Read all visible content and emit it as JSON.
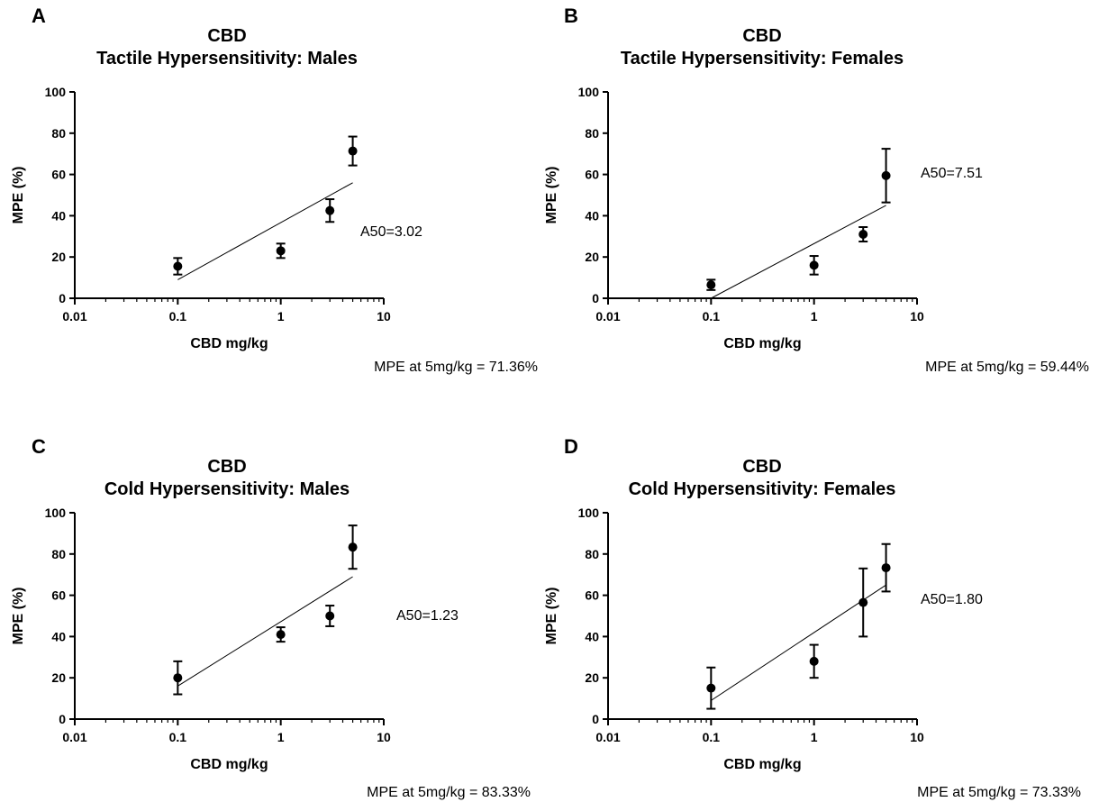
{
  "chart_data": [
    {
      "type": "scatter",
      "panel": "A",
      "title": "CBD",
      "subtitle": "Tactile Hypersensitivity: Males",
      "xlabel": "CBD mg/kg",
      "ylabel": "MPE (%)",
      "xscale": "log",
      "xlim": [
        0.01,
        10
      ],
      "ylim": [
        0,
        100
      ],
      "x_ticks": [
        "0.01",
        "0.1",
        "1",
        "10"
      ],
      "y_ticks": [
        "0",
        "20",
        "40",
        "60",
        "80",
        "100"
      ],
      "points": [
        {
          "x": 0.1,
          "y": 15.5,
          "err": 4.0
        },
        {
          "x": 1,
          "y": 23.0,
          "err": 3.5
        },
        {
          "x": 3,
          "y": 42.5,
          "err": 5.5
        },
        {
          "x": 5,
          "y": 71.36,
          "err": 7.0
        }
      ],
      "fit_line": [
        {
          "x": 0.1,
          "y": 9
        },
        {
          "x": 5,
          "y": 56
        }
      ],
      "annotation": "A50=3.02",
      "note": "MPE at 5mg/kg = 71.36%",
      "grid": false,
      "legend": "none"
    },
    {
      "type": "scatter",
      "panel": "B",
      "title": "CBD",
      "subtitle": "Tactile Hypersensitivity: Females",
      "xlabel": "CBD mg/kg",
      "ylabel": "MPE (%)",
      "xscale": "log",
      "xlim": [
        0.01,
        10
      ],
      "ylim": [
        0,
        100
      ],
      "x_ticks": [
        "0.01",
        "0.1",
        "1",
        "10"
      ],
      "y_ticks": [
        "0",
        "20",
        "40",
        "60",
        "80",
        "100"
      ],
      "points": [
        {
          "x": 0.1,
          "y": 6.5,
          "err": 2.5
        },
        {
          "x": 1,
          "y": 16.0,
          "err": 4.5
        },
        {
          "x": 3,
          "y": 31.0,
          "err": 3.5
        },
        {
          "x": 5,
          "y": 59.44,
          "err": 13.0
        }
      ],
      "fit_line": [
        {
          "x": 0.1,
          "y": 0
        },
        {
          "x": 5,
          "y": 45
        }
      ],
      "annotation": "A50=7.51",
      "note": "MPE at 5mg/kg = 59.44%",
      "grid": false,
      "legend": "none"
    },
    {
      "type": "scatter",
      "panel": "C",
      "title": "CBD",
      "subtitle": "Cold Hypersensitivity: Males",
      "xlabel": "CBD mg/kg",
      "ylabel": "MPE (%)",
      "xscale": "log",
      "xlim": [
        0.01,
        10
      ],
      "ylim": [
        0,
        100
      ],
      "x_ticks": [
        "0.01",
        "0.1",
        "1",
        "10"
      ],
      "y_ticks": [
        "0",
        "20",
        "40",
        "60",
        "80",
        "100"
      ],
      "points": [
        {
          "x": 0.1,
          "y": 20.0,
          "err": 8.0
        },
        {
          "x": 1,
          "y": 41.0,
          "err": 3.5
        },
        {
          "x": 3,
          "y": 50.0,
          "err": 5.0
        },
        {
          "x": 5,
          "y": 83.33,
          "err": 10.5
        }
      ],
      "fit_line": [
        {
          "x": 0.1,
          "y": 16
        },
        {
          "x": 5,
          "y": 69
        }
      ],
      "annotation": "A50=1.23",
      "note": "MPE at 5mg/kg = 83.33%",
      "grid": false,
      "legend": "none"
    },
    {
      "type": "scatter",
      "panel": "D",
      "title": "CBD",
      "subtitle": "Cold Hypersensitivity: Females",
      "xlabel": "CBD mg/kg",
      "ylabel": "MPE (%)",
      "xscale": "log",
      "xlim": [
        0.01,
        10
      ],
      "ylim": [
        0,
        100
      ],
      "x_ticks": [
        "0.01",
        "0.1",
        "1",
        "10"
      ],
      "y_ticks": [
        "0",
        "20",
        "40",
        "60",
        "80",
        "100"
      ],
      "points": [
        {
          "x": 0.1,
          "y": 15.0,
          "err": 10.0
        },
        {
          "x": 1,
          "y": 28.0,
          "err": 8.0
        },
        {
          "x": 3,
          "y": 56.5,
          "err": 16.5
        },
        {
          "x": 5,
          "y": 73.33,
          "err": 11.5
        }
      ],
      "fit_line": [
        {
          "x": 0.1,
          "y": 9
        },
        {
          "x": 5,
          "y": 65
        }
      ],
      "annotation": "A50=1.80",
      "note": "MPE at 5mg/kg = 73.33%",
      "grid": false,
      "legend": "none"
    }
  ]
}
